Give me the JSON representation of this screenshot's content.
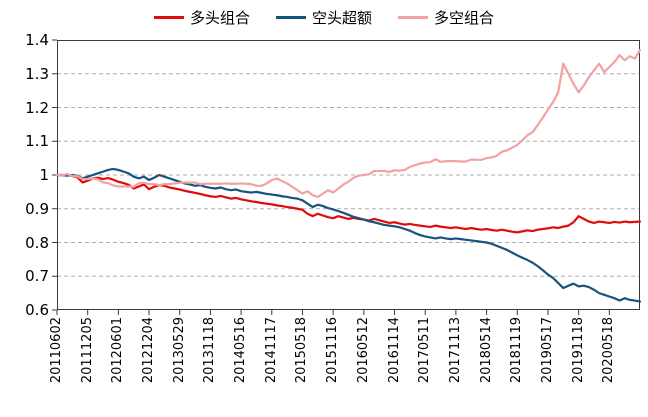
{
  "chart_data": {
    "type": "line",
    "title": "",
    "xlabel": "",
    "ylabel": "",
    "ylim": [
      0.6,
      1.4
    ],
    "y_tick_labels": [
      "0.6",
      "0.7",
      "0.8",
      "0.9",
      "1",
      "1.1",
      "1.2",
      "1.3",
      "1.4"
    ],
    "grid": "horizontal-dashed",
    "legend_position": "top",
    "x_labels": [
      "20110602",
      "20111205",
      "20120601",
      "20121204",
      "20130529",
      "20131118",
      "20140516",
      "20141117",
      "20150518",
      "20151116",
      "20160512",
      "20161114",
      "20170511",
      "20171113",
      "20180514",
      "20181119",
      "20190517",
      "20191118",
      "20200518"
    ],
    "label_every": 6,
    "series": [
      {
        "name": "多头组合",
        "color": "#e00b0b",
        "values": [
          1.0,
          0.999,
          1.001,
          0.997,
          0.993,
          0.978,
          0.983,
          0.99,
          0.992,
          0.988,
          0.991,
          0.986,
          0.98,
          0.976,
          0.971,
          0.96,
          0.966,
          0.972,
          0.958,
          0.965,
          0.97,
          0.968,
          0.963,
          0.96,
          0.957,
          0.953,
          0.95,
          0.947,
          0.944,
          0.94,
          0.937,
          0.935,
          0.938,
          0.934,
          0.93,
          0.932,
          0.928,
          0.925,
          0.922,
          0.92,
          0.917,
          0.915,
          0.913,
          0.91,
          0.908,
          0.905,
          0.903,
          0.9,
          0.897,
          0.885,
          0.878,
          0.885,
          0.88,
          0.875,
          0.872,
          0.878,
          0.874,
          0.87,
          0.873,
          0.87,
          0.868,
          0.865,
          0.87,
          0.866,
          0.862,
          0.858,
          0.86,
          0.856,
          0.853,
          0.855,
          0.852,
          0.85,
          0.848,
          0.846,
          0.85,
          0.847,
          0.845,
          0.843,
          0.845,
          0.842,
          0.84,
          0.843,
          0.84,
          0.838,
          0.84,
          0.837,
          0.835,
          0.838,
          0.835,
          0.832,
          0.83,
          0.833,
          0.836,
          0.834,
          0.838,
          0.84,
          0.842,
          0.845,
          0.843,
          0.847,
          0.85,
          0.86,
          0.878,
          0.87,
          0.862,
          0.858,
          0.862,
          0.86,
          0.858,
          0.861,
          0.859,
          0.862,
          0.86,
          0.861,
          0.862
        ]
      },
      {
        "name": "空头超额",
        "color": "#16537e",
        "values": [
          1.0,
          1.0,
          0.998,
          1.0,
          0.997,
          0.99,
          0.995,
          1.0,
          1.005,
          1.01,
          1.015,
          1.018,
          1.015,
          1.01,
          1.005,
          0.995,
          0.99,
          0.995,
          0.985,
          0.992,
          1.0,
          0.995,
          0.99,
          0.985,
          0.98,
          0.975,
          0.972,
          0.968,
          0.97,
          0.965,
          0.962,
          0.96,
          0.963,
          0.958,
          0.955,
          0.957,
          0.952,
          0.95,
          0.948,
          0.95,
          0.947,
          0.944,
          0.942,
          0.94,
          0.937,
          0.935,
          0.932,
          0.93,
          0.925,
          0.915,
          0.905,
          0.912,
          0.908,
          0.902,
          0.898,
          0.893,
          0.888,
          0.882,
          0.876,
          0.872,
          0.868,
          0.863,
          0.86,
          0.856,
          0.852,
          0.85,
          0.848,
          0.845,
          0.84,
          0.835,
          0.828,
          0.822,
          0.818,
          0.815,
          0.812,
          0.815,
          0.812,
          0.81,
          0.812,
          0.81,
          0.808,
          0.806,
          0.804,
          0.802,
          0.8,
          0.796,
          0.79,
          0.784,
          0.778,
          0.77,
          0.762,
          0.755,
          0.748,
          0.74,
          0.73,
          0.718,
          0.705,
          0.695,
          0.68,
          0.665,
          0.672,
          0.678,
          0.67,
          0.672,
          0.668,
          0.66,
          0.65,
          0.645,
          0.64,
          0.635,
          0.628,
          0.635,
          0.63,
          0.628,
          0.625
        ]
      },
      {
        "name": "多空组合",
        "color": "#f2a2a2",
        "values": [
          1.0,
          0.999,
          1.003,
          0.997,
          0.996,
          0.988,
          0.988,
          0.99,
          0.987,
          0.978,
          0.976,
          0.969,
          0.966,
          0.966,
          0.966,
          0.965,
          0.976,
          0.977,
          0.973,
          0.973,
          0.97,
          0.973,
          0.973,
          0.975,
          0.977,
          0.978,
          0.977,
          0.978,
          0.973,
          0.974,
          0.974,
          0.974,
          0.974,
          0.975,
          0.974,
          0.974,
          0.975,
          0.974,
          0.973,
          0.968,
          0.968,
          0.975,
          0.985,
          0.99,
          0.982,
          0.975,
          0.965,
          0.955,
          0.945,
          0.952,
          0.94,
          0.935,
          0.945,
          0.955,
          0.948,
          0.96,
          0.972,
          0.98,
          0.992,
          0.998,
          1.0,
          1.002,
          1.012,
          1.012,
          1.012,
          1.009,
          1.014,
          1.013,
          1.015,
          1.024,
          1.029,
          1.034,
          1.037,
          1.038,
          1.047,
          1.039,
          1.041,
          1.041,
          1.041,
          1.04,
          1.04,
          1.046,
          1.045,
          1.045,
          1.05,
          1.052,
          1.057,
          1.069,
          1.073,
          1.081,
          1.089,
          1.103,
          1.118,
          1.127,
          1.148,
          1.17,
          1.194,
          1.216,
          1.245,
          1.33,
          1.3,
          1.27,
          1.245,
          1.265,
          1.29,
          1.31,
          1.33,
          1.305,
          1.32,
          1.335,
          1.355,
          1.34,
          1.352,
          1.345,
          1.37
        ]
      }
    ]
  },
  "style": {
    "grid_color": "#adadad",
    "axis_color": "#3a3a3a",
    "line_width": 2.2
  }
}
